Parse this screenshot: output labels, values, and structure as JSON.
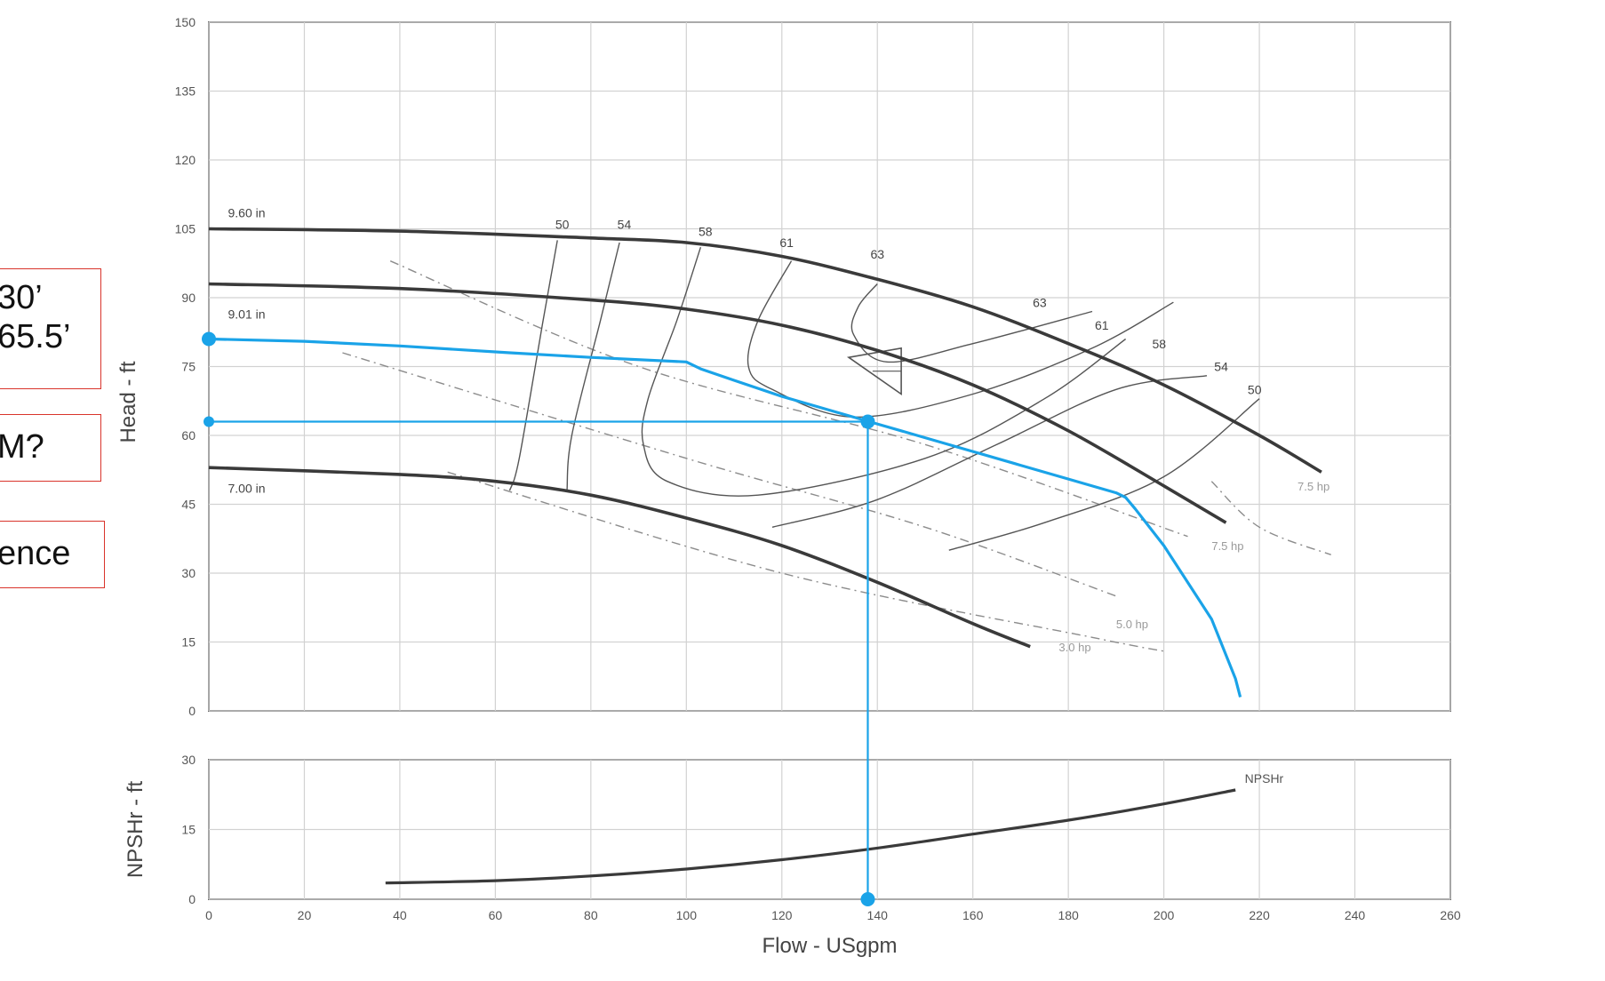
{
  "callouts": [
    {
      "lines": [
        "30’",
        "65.5’"
      ]
    },
    {
      "lines": [
        "M?"
      ]
    },
    {
      "lines": [
        "ence"
      ]
    }
  ],
  "chart_data": [
    {
      "type": "line",
      "xlabel": "Flow - USgpm",
      "ylabel": "Head - ft",
      "xlim": [
        0,
        260
      ],
      "ylim": [
        0,
        150
      ],
      "xticks": [
        0,
        20,
        40,
        60,
        80,
        100,
        120,
        140,
        160,
        180,
        200,
        220,
        240,
        260
      ],
      "yticks": [
        0,
        15,
        30,
        45,
        60,
        75,
        90,
        105,
        120,
        135,
        150
      ],
      "grid": true,
      "colors": {
        "curves": "#3a3a3a",
        "efficiency": "#555555",
        "power": "#8c8c8c",
        "marker": "#1aa3e8"
      },
      "series": [
        {
          "name": "9.60 in",
          "kind": "impeller",
          "x": [
            0,
            40,
            80,
            100,
            120,
            140,
            160,
            180,
            200,
            220,
            233
          ],
          "y": [
            105,
            104.5,
            103,
            102,
            99,
            94,
            88,
            80,
            71,
            60,
            52
          ]
        },
        {
          "name": "9.01 in",
          "kind": "impeller",
          "x": [
            0,
            40,
            80,
            100,
            120,
            140,
            160,
            180,
            200,
            213
          ],
          "y": [
            93,
            92,
            89.5,
            87.5,
            84,
            78.5,
            71,
            61,
            49,
            41
          ]
        },
        {
          "name": "7.00 in",
          "kind": "impeller",
          "x": [
            0,
            40,
            60,
            80,
            100,
            120,
            140,
            160,
            172
          ],
          "y": [
            53,
            51.5,
            50,
            47,
            42,
            36,
            28,
            19,
            14
          ]
        },
        {
          "name": "",
          "kind": "marked",
          "x": [
            0,
            20,
            40,
            63,
            80,
            100,
            103,
            110,
            120,
            130,
            140,
            150,
            160,
            170,
            180,
            190,
            192,
            194,
            200,
            210,
            215,
            216
          ],
          "y": [
            81,
            80.5,
            79.5,
            78,
            77,
            76,
            74.5,
            72,
            68.5,
            65.5,
            62.5,
            59.5,
            56.5,
            53.5,
            50.5,
            47.5,
            46.5,
            44,
            36,
            20,
            7,
            3
          ]
        },
        {
          "name": "NPSHr",
          "kind": "npsh",
          "x": [
            37,
            60,
            80,
            100,
            120,
            140,
            160,
            180,
            200,
            215
          ],
          "y": [
            3.5,
            4,
            5,
            6.5,
            8.5,
            11,
            14,
            17,
            20.5,
            23.5
          ]
        }
      ],
      "efficiency_labels": [
        "50",
        "54",
        "58",
        "61",
        "63",
        "63",
        "61",
        "58",
        "54",
        "50"
      ],
      "power_labels": [
        "7.5 hp",
        "7.5 hp",
        "5.0 hp",
        "3.0 hp"
      ],
      "marker": {
        "flow": 138,
        "head": 63
      }
    },
    {
      "type": "line",
      "xlabel": "",
      "ylabel": "NPSHr - ft",
      "xlim": [
        0,
        260
      ],
      "ylim": [
        0,
        30
      ],
      "yticks": [
        0,
        15,
        30
      ],
      "grid": true
    }
  ]
}
